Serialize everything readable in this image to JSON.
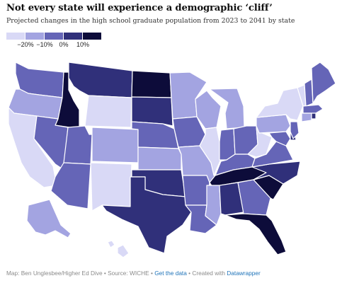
{
  "title": "Not every state will experience a demographic ‘cliff’",
  "subtitle": "Projected changes in the high school graduate population from 2023 to 2041 by state",
  "legend": {
    "colors": [
      "#d9d9f6",
      "#a3a4e1",
      "#6565b7",
      "#30307a",
      "#0d0c3a"
    ],
    "labels": [
      "−20%",
      "−10%",
      "0%",
      "10%"
    ]
  },
  "footer": {
    "source": "Map: Ben Unglesbee/Higher Ed Dive • Source: WICHE •",
    "data_link": "Get the data",
    "sep": "• Created with",
    "dw_link": "Datawrapper"
  }
}
